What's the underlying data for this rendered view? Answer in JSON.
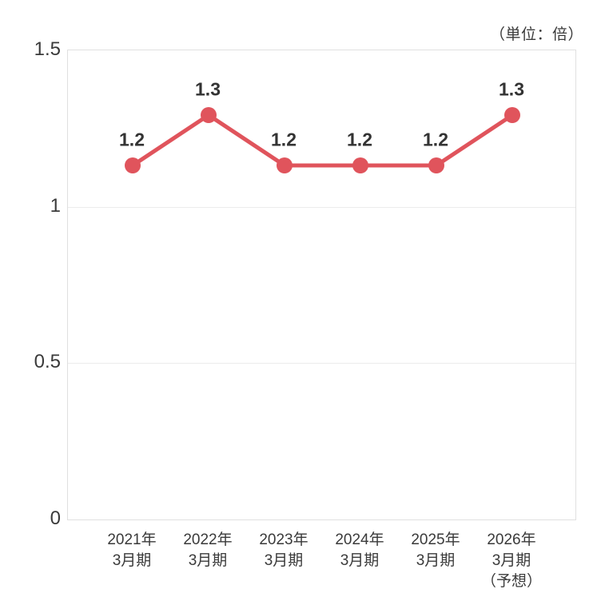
{
  "unit_label": "（単位：倍）",
  "chart_data": {
    "type": "line",
    "title": "",
    "xlabel": "",
    "ylabel": "",
    "unit": "倍",
    "categories": [
      "2021年\n3月期",
      "2022年\n3月期",
      "2023年\n3月期",
      "2024年\n3月期",
      "2025年\n3月期",
      "2026年\n3月期\n（予想）"
    ],
    "values": [
      1.2,
      1.3,
      1.2,
      1.2,
      1.2,
      1.3
    ],
    "data_labels": [
      "1.2",
      "1.3",
      "1.2",
      "1.2",
      "1.2",
      "1.3"
    ],
    "ylim": [
      0,
      1.5
    ],
    "yticks": [
      0,
      0.5,
      1,
      1.5
    ],
    "ytick_labels": [
      "0",
      "0.5",
      "1",
      "1.5"
    ],
    "grid": true,
    "legend": false,
    "line_color": "#e0545c",
    "marker_color": "#e0545c",
    "text_color": "#3a3a3a",
    "grid_color": "#ececec",
    "border_color": "#e0e0e0"
  }
}
